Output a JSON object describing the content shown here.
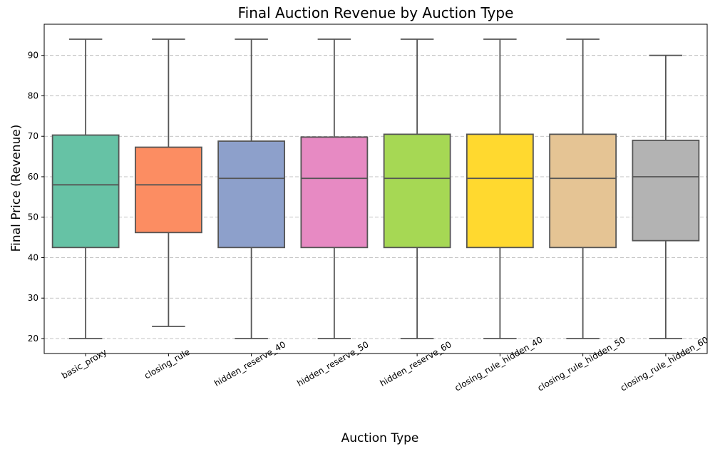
{
  "chart_data": {
    "type": "box",
    "title": "Final Auction Revenue by Auction Type",
    "xlabel": "Auction Type",
    "ylabel": "Final Price (Revenue)",
    "ylim": [
      16.3,
      97.7
    ],
    "yticks": [
      20,
      30,
      40,
      50,
      60,
      70,
      80,
      90
    ],
    "grid": "y",
    "categories": [
      "basic_proxy",
      "closing_rule",
      "hidden_reserve_40",
      "hidden_reserve_50",
      "hidden_reserve_60",
      "closing_rule_hidden_40",
      "closing_rule_hidden_50",
      "closing_rule_hidden_60"
    ],
    "boxes": [
      {
        "min": 20,
        "q1": 42.5,
        "median": 58,
        "q3": 70.3,
        "max": 94,
        "color": "#66c2a5"
      },
      {
        "min": 23,
        "q1": 46.2,
        "median": 58,
        "q3": 67.3,
        "max": 94,
        "color": "#fc8d62"
      },
      {
        "min": 20,
        "q1": 42.5,
        "median": 59.6,
        "q3": 68.8,
        "max": 94,
        "color": "#8da0cb"
      },
      {
        "min": 20,
        "q1": 42.5,
        "median": 59.6,
        "q3": 69.8,
        "max": 94,
        "color": "#e78ac3"
      },
      {
        "min": 20,
        "q1": 42.5,
        "median": 59.6,
        "q3": 70.5,
        "max": 94,
        "color": "#a6d854"
      },
      {
        "min": 20,
        "q1": 42.5,
        "median": 59.6,
        "q3": 70.5,
        "max": 94,
        "color": "#ffd92f"
      },
      {
        "min": 20,
        "q1": 42.5,
        "median": 59.6,
        "q3": 70.5,
        "max": 94,
        "color": "#e5c494"
      },
      {
        "min": 20,
        "q1": 44.2,
        "median": 60,
        "q3": 69,
        "max": 90,
        "color": "#b3b3b3"
      }
    ]
  }
}
